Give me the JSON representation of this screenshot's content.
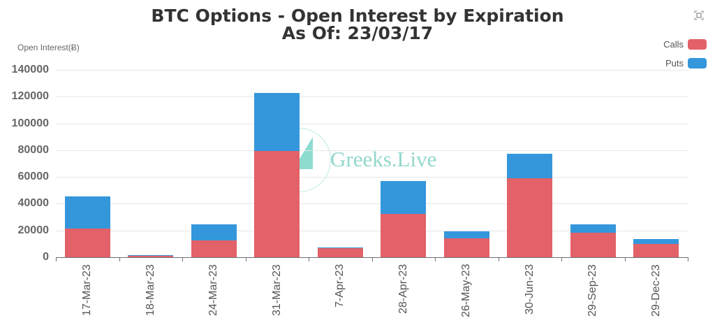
{
  "header": {
    "title_line1": "BTC Options - Open Interest by Expiration",
    "title_line2": "As Of: 23/03/17",
    "toolbox_icon": "expand-icon"
  },
  "legend": {
    "items": [
      {
        "label": "Calls",
        "color": "#e36168"
      },
      {
        "label": "Puts",
        "color": "#3497dc"
      }
    ]
  },
  "watermark": {
    "text": "Greeks.Live"
  },
  "y_axis": {
    "name": "Open Interest(Ƀ)",
    "ticks": [
      "0",
      "20000",
      "40000",
      "60000",
      "80000",
      "100000",
      "120000",
      "140000"
    ]
  },
  "chart_data": {
    "type": "bar",
    "stacked": true,
    "title": "BTC Options - Open Interest by Expiration\nAs Of: 23/03/17",
    "xlabel": "",
    "ylabel": "Open Interest(Ƀ)",
    "ylim": [
      0,
      140000
    ],
    "grid": true,
    "legend_position": "top-right",
    "categories": [
      "17-Mar-23",
      "18-Mar-23",
      "24-Mar-23",
      "31-Mar-23",
      "7-Apr-23",
      "28-Apr-23",
      "26-May-23",
      "30-Jun-23",
      "29-Sep-23",
      "29-Dec-23"
    ],
    "series": [
      {
        "name": "Calls",
        "color": "#e36168",
        "values": [
          21500,
          1300,
          12500,
          79400,
          6800,
          32500,
          14000,
          59000,
          18500,
          10000
        ]
      },
      {
        "name": "Puts",
        "color": "#3497dc",
        "values": [
          24000,
          200,
          12000,
          43300,
          300,
          24500,
          5300,
          18300,
          6000,
          3500
        ]
      }
    ]
  }
}
